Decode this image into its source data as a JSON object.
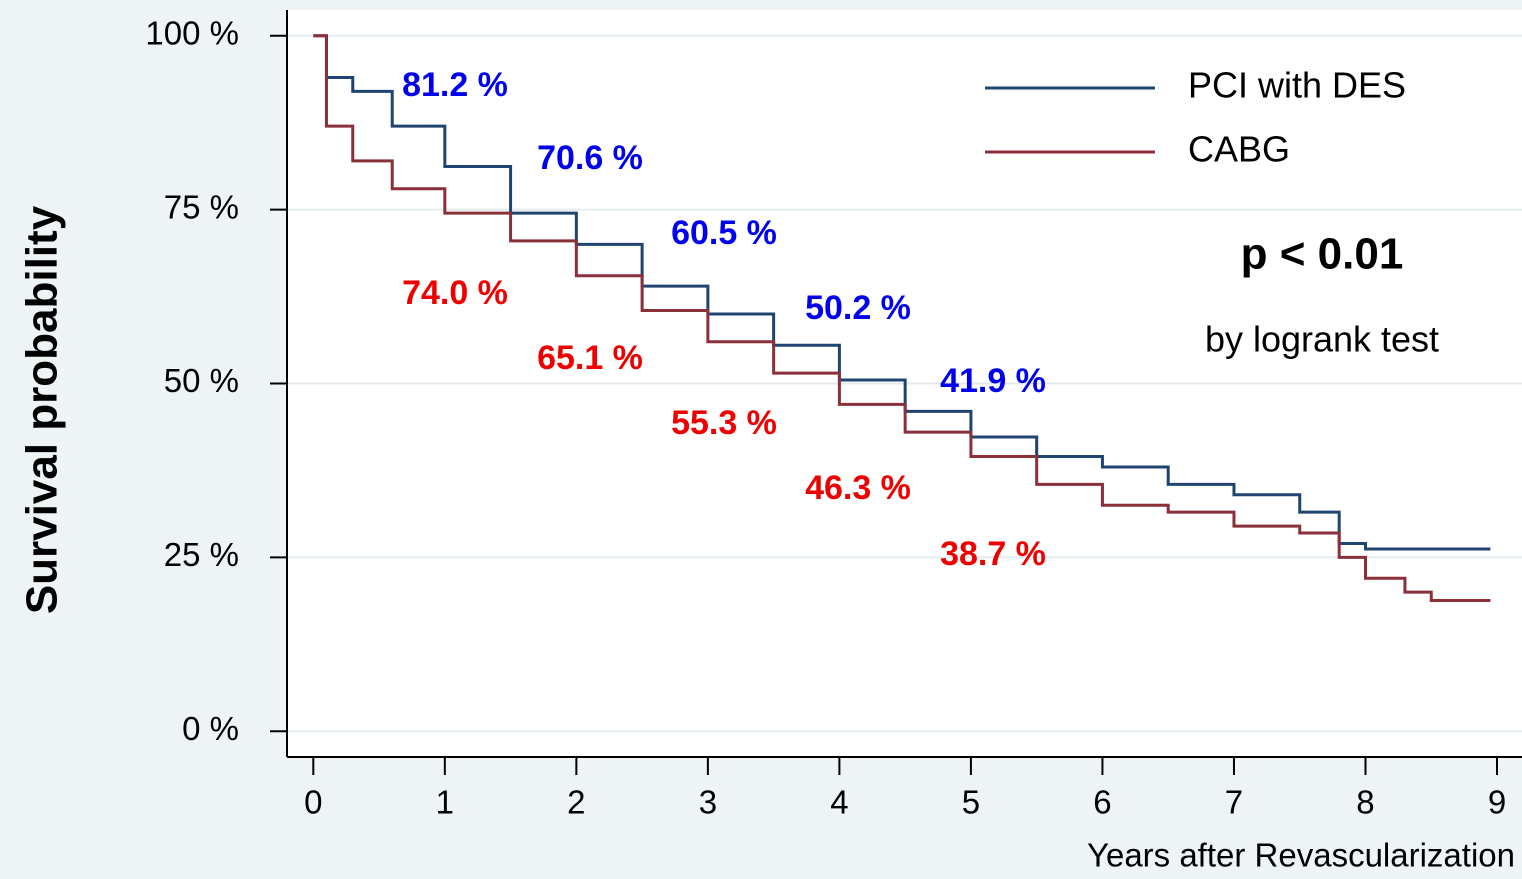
{
  "chart_data": {
    "type": "line",
    "step": true,
    "y_label": "Survival probability",
    "x_label": "Years after Revascularization",
    "x": [
      0,
      0.1,
      0.3,
      0.6,
      1,
      1.5,
      2,
      2.5,
      3,
      3.5,
      4,
      4.5,
      5,
      5.5,
      6,
      6.5,
      7,
      7.5,
      7.8,
      8,
      8.3,
      8.5,
      8.95
    ],
    "series": [
      {
        "name": "PCI with DES",
        "color": "#1f4470",
        "values": [
          100,
          94,
          92,
          87,
          81.2,
          74.5,
          70,
          64,
          60,
          55.5,
          50.5,
          46,
          42.3,
          39.5,
          38,
          35.5,
          34,
          31.5,
          27,
          26.2,
          26.2,
          26.2,
          26.2
        ]
      },
      {
        "name": "CABG",
        "color": "#8b2f3a",
        "values": [
          100,
          87,
          82,
          78,
          74.5,
          70.5,
          65.5,
          60.5,
          56,
          51.5,
          47,
          43,
          39.5,
          35.5,
          32.5,
          31.5,
          29.5,
          28.5,
          25,
          22,
          20,
          18.8,
          18.8
        ]
      }
    ],
    "annotations": [
      {
        "text": "81.2 %",
        "color": "#0000ee"
      },
      {
        "text": "70.6 %",
        "color": "#0000ee"
      },
      {
        "text": "60.5 %",
        "color": "#0000ee"
      },
      {
        "text": "50.2 %",
        "color": "#0000ee"
      },
      {
        "text": "41.9 %",
        "color": "#0000ee"
      },
      {
        "text": "74.0 %",
        "color": "#ee0000"
      },
      {
        "text": "65.1 %",
        "color": "#ee0000"
      },
      {
        "text": "55.3 %",
        "color": "#ee0000"
      },
      {
        "text": "46.3 %",
        "color": "#ee0000"
      },
      {
        "text": "38.7 %",
        "color": "#ee0000"
      },
      {
        "text": "p < 0.01",
        "color": "#000000"
      },
      {
        "text": "by logrank test",
        "color": "#000000"
      }
    ],
    "xlim": [
      -0.2,
      9.19
    ],
    "ylim": [
      -3.7,
      103.7
    ],
    "xticks": [
      0,
      1,
      2,
      3,
      4,
      5,
      6,
      7,
      8,
      9
    ],
    "yticks": [
      {
        "value": 0,
        "label": "0 %"
      },
      {
        "value": 25,
        "label": "25 %"
      },
      {
        "value": 50,
        "label": "50 %"
      },
      {
        "value": 75,
        "label": "75 %"
      },
      {
        "value": 100,
        "label": "100 %"
      }
    ],
    "grid": true,
    "legend": "upper right"
  }
}
